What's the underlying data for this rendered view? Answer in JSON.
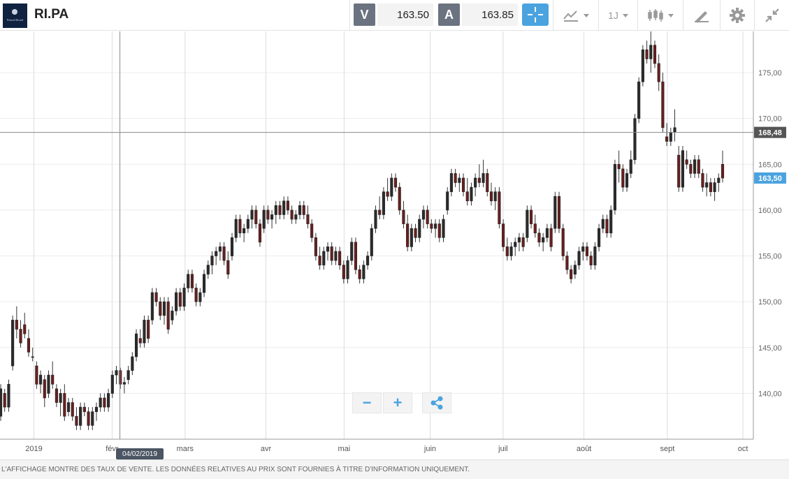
{
  "header": {
    "symbol": "RI.PA",
    "logo_text": "Pernod Ricard",
    "sell_label": "V",
    "sell_price": "163.50",
    "buy_label": "A",
    "buy_price": "163.85",
    "timeframe": "1J",
    "tools": [
      "crosshair-icon",
      "compare-icon",
      "timeframe-selector",
      "candlestick-type-icon",
      "drawing-pen-icon",
      "gear-icon",
      "collapse-icon"
    ]
  },
  "footer": {
    "disclaimer": "L'AFFICHAGE MONTRE DES TAUX DE VENTE. LES DONNÉES RELATIVES AU PRIX SONT FOURNIES À TITRE D'INFORMATION UNIQUEMENT."
  },
  "controls": {
    "zoom_out": "−",
    "zoom_in": "+",
    "share_icon": "share-icon"
  },
  "tooltip": {
    "date": "04/02/2019"
  },
  "colors": {
    "up": "#2b2b2b",
    "down": "#6b1e1e",
    "accent": "#4aa3df",
    "crosshair_label": "#555555"
  },
  "chart_data": {
    "type": "candlestick",
    "ylim": [
      135.0,
      179.5
    ],
    "y_ticks": [
      "140,00",
      "145,00",
      "150,00",
      "155,00",
      "160,00",
      "165,00",
      "170,00",
      "175,00"
    ],
    "x_labels": [
      {
        "label": "2019",
        "date": "2019-01-02"
      },
      {
        "label": "févr",
        "date": "2019-02-01"
      },
      {
        "label": "mars",
        "date": "2019-03-01"
      },
      {
        "label": "avr",
        "date": "2019-04-01"
      },
      {
        "label": "mai",
        "date": "2019-05-01"
      },
      {
        "label": "juin",
        "date": "2019-06-03"
      },
      {
        "label": "juil",
        "date": "2019-07-01"
      },
      {
        "label": "août",
        "date": "2019-08-01"
      },
      {
        "label": "sept",
        "date": "2019-09-02"
      },
      {
        "label": "oct",
        "date": "2019-10-01"
      }
    ],
    "crosshair_price": "168,48",
    "crosshair_value": 168.48,
    "last_price_label": "163,50",
    "last_price_value": 163.5,
    "candles": [
      [
        137.5,
        141.0,
        137.0,
        140.5
      ],
      [
        140.0,
        140.5,
        138.0,
        138.5
      ],
      [
        138.5,
        141.5,
        138.0,
        141.0
      ],
      [
        143.0,
        148.5,
        142.5,
        148.0
      ],
      [
        148.0,
        149.5,
        146.0,
        147.0
      ],
      [
        147.0,
        148.0,
        145.0,
        145.5
      ],
      [
        147.5,
        148.8,
        146.0,
        146.5
      ],
      [
        146.0,
        147.0,
        144.0,
        144.5
      ],
      [
        144.0,
        145.0,
        143.5,
        144.0
      ],
      [
        143.0,
        143.5,
        140.5,
        141.0
      ],
      [
        141.0,
        142.5,
        140.0,
        142.0
      ],
      [
        141.5,
        142.0,
        138.5,
        139.5
      ],
      [
        140.0,
        142.5,
        139.5,
        142.0
      ],
      [
        142.0,
        143.5,
        140.5,
        141.0
      ],
      [
        140.5,
        141.0,
        138.5,
        139.0
      ],
      [
        139.0,
        140.5,
        137.5,
        140.0
      ],
      [
        140.0,
        141.0,
        137.0,
        137.5
      ],
      [
        138.0,
        139.5,
        137.5,
        139.0
      ],
      [
        139.0,
        139.5,
        137.0,
        137.5
      ],
      [
        137.5,
        138.5,
        136.0,
        136.5
      ],
      [
        136.5,
        139.0,
        136.0,
        138.5
      ],
      [
        138.5,
        139.0,
        137.5,
        138.0
      ],
      [
        138.0,
        138.5,
        136.0,
        136.5
      ],
      [
        136.5,
        138.5,
        136.0,
        138.0
      ],
      [
        138.0,
        139.0,
        137.0,
        138.5
      ],
      [
        138.5,
        140.0,
        138.0,
        139.5
      ],
      [
        139.5,
        140.0,
        138.0,
        138.5
      ],
      [
        138.5,
        140.5,
        138.0,
        140.0
      ],
      [
        140.0,
        142.5,
        139.5,
        142.0
      ],
      [
        142.0,
        143.0,
        141.0,
        142.5
      ],
      [
        142.5,
        142.8,
        140.5,
        141.0
      ],
      [
        141.0,
        141.8,
        140.0,
        141.2
      ],
      [
        141.5,
        143.0,
        141.0,
        142.5
      ],
      [
        142.5,
        144.5,
        142.0,
        144.0
      ],
      [
        144.0,
        147.0,
        143.5,
        146.5
      ],
      [
        146.0,
        147.0,
        145.0,
        145.5
      ],
      [
        145.5,
        148.5,
        145.0,
        148.0
      ],
      [
        148.0,
        148.5,
        145.5,
        146.0
      ],
      [
        148.0,
        151.5,
        147.5,
        151.0
      ],
      [
        151.0,
        151.5,
        149.5,
        150.0
      ],
      [
        150.0,
        150.5,
        148.0,
        148.5
      ],
      [
        148.5,
        150.5,
        147.5,
        150.0
      ],
      [
        150.0,
        150.5,
        146.5,
        147.0
      ],
      [
        148.0,
        149.5,
        147.5,
        149.0
      ],
      [
        149.0,
        151.5,
        148.5,
        151.0
      ],
      [
        151.0,
        151.5,
        149.0,
        149.5
      ],
      [
        149.5,
        152.0,
        149.0,
        151.5
      ],
      [
        151.5,
        153.5,
        151.0,
        153.0
      ],
      [
        153.0,
        153.5,
        151.0,
        151.5
      ],
      [
        151.5,
        152.0,
        149.5,
        150.0
      ],
      [
        150.0,
        151.5,
        149.5,
        151.0
      ],
      [
        151.0,
        153.5,
        150.5,
        153.0
      ],
      [
        153.0,
        154.5,
        152.5,
        154.0
      ],
      [
        154.0,
        155.5,
        153.0,
        155.0
      ],
      [
        155.0,
        156.0,
        154.0,
        155.5
      ],
      [
        155.5,
        156.5,
        154.5,
        156.0
      ],
      [
        156.0,
        156.5,
        154.0,
        154.5
      ],
      [
        154.5,
        155.5,
        152.5,
        153.0
      ],
      [
        155.0,
        157.5,
        154.5,
        157.0
      ],
      [
        157.0,
        159.5,
        156.5,
        159.0
      ],
      [
        159.0,
        159.5,
        157.0,
        157.5
      ],
      [
        157.5,
        158.5,
        156.5,
        158.0
      ],
      [
        158.0,
        159.5,
        157.5,
        159.0
      ],
      [
        159.0,
        160.5,
        158.0,
        160.0
      ],
      [
        160.0,
        160.5,
        158.0,
        158.5
      ],
      [
        158.5,
        159.0,
        156.0,
        156.5
      ],
      [
        158.0,
        160.5,
        157.5,
        160.0
      ],
      [
        160.0,
        160.5,
        158.5,
        159.0
      ],
      [
        159.0,
        160.0,
        158.0,
        159.5
      ],
      [
        159.5,
        161.0,
        158.5,
        160.5
      ],
      [
        160.5,
        161.0,
        159.0,
        159.5
      ],
      [
        159.5,
        161.5,
        159.0,
        161.0
      ],
      [
        161.0,
        161.5,
        159.5,
        160.0
      ],
      [
        160.0,
        160.5,
        158.5,
        159.0
      ],
      [
        159.0,
        160.0,
        158.5,
        159.5
      ],
      [
        159.5,
        161.0,
        159.0,
        160.5
      ],
      [
        160.5,
        161.0,
        159.0,
        159.5
      ],
      [
        159.5,
        160.5,
        158.0,
        158.5
      ],
      [
        158.5,
        159.0,
        156.5,
        157.0
      ],
      [
        157.0,
        157.5,
        154.5,
        155.0
      ],
      [
        155.0,
        156.0,
        153.5,
        154.0
      ],
      [
        154.0,
        156.0,
        153.5,
        155.5
      ],
      [
        155.5,
        156.5,
        154.5,
        156.0
      ],
      [
        156.0,
        156.5,
        154.0,
        154.5
      ],
      [
        154.5,
        156.0,
        154.0,
        155.5
      ],
      [
        155.5,
        156.0,
        153.5,
        154.0
      ],
      [
        154.0,
        154.5,
        152.0,
        152.5
      ],
      [
        152.5,
        155.0,
        152.0,
        154.5
      ],
      [
        154.5,
        157.0,
        154.0,
        156.5
      ],
      [
        156.5,
        157.0,
        153.0,
        153.5
      ],
      [
        153.5,
        154.0,
        152.0,
        152.5
      ],
      [
        152.5,
        154.5,
        152.0,
        154.0
      ],
      [
        154.0,
        155.5,
        153.5,
        155.0
      ],
      [
        155.0,
        158.5,
        154.5,
        158.0
      ],
      [
        158.0,
        160.5,
        157.5,
        160.0
      ],
      [
        160.0,
        161.5,
        159.0,
        159.5
      ],
      [
        159.5,
        162.5,
        159.0,
        162.0
      ],
      [
        162.0,
        163.5,
        161.0,
        161.5
      ],
      [
        161.5,
        164.0,
        161.0,
        163.5
      ],
      [
        163.5,
        164.0,
        162.0,
        162.5
      ],
      [
        162.5,
        163.0,
        159.5,
        160.0
      ],
      [
        160.0,
        161.0,
        158.0,
        158.5
      ],
      [
        158.5,
        159.5,
        155.5,
        156.0
      ],
      [
        156.0,
        158.5,
        155.5,
        158.0
      ],
      [
        158.0,
        158.5,
        156.5,
        157.0
      ],
      [
        157.0,
        159.5,
        156.5,
        159.0
      ],
      [
        159.0,
        160.5,
        158.0,
        160.0
      ],
      [
        160.0,
        160.5,
        158.0,
        158.5
      ],
      [
        158.5,
        159.0,
        157.5,
        158.0
      ],
      [
        158.0,
        159.0,
        157.0,
        158.5
      ],
      [
        158.5,
        159.0,
        156.5,
        157.0
      ],
      [
        157.0,
        159.5,
        156.5,
        159.0
      ],
      [
        160.0,
        162.5,
        159.5,
        162.0
      ],
      [
        162.0,
        164.5,
        161.5,
        164.0
      ],
      [
        164.0,
        164.5,
        162.5,
        163.0
      ],
      [
        163.0,
        164.0,
        162.0,
        163.5
      ],
      [
        163.5,
        164.0,
        161.5,
        162.0
      ],
      [
        162.0,
        163.5,
        160.5,
        161.0
      ],
      [
        161.0,
        163.0,
        160.5,
        162.5
      ],
      [
        162.5,
        164.0,
        161.5,
        163.5
      ],
      [
        163.5,
        165.0,
        162.5,
        163.0
      ],
      [
        163.0,
        165.5,
        162.5,
        164.0
      ],
      [
        164.0,
        164.5,
        161.5,
        162.0
      ],
      [
        162.0,
        163.0,
        160.5,
        161.0
      ],
      [
        161.0,
        162.5,
        160.0,
        162.0
      ],
      [
        162.0,
        162.5,
        158.0,
        158.5
      ],
      [
        158.5,
        159.0,
        155.5,
        156.0
      ],
      [
        156.0,
        157.0,
        154.5,
        155.0
      ],
      [
        155.0,
        156.5,
        154.5,
        156.0
      ],
      [
        156.0,
        157.0,
        155.0,
        156.5
      ],
      [
        156.5,
        157.5,
        155.5,
        157.0
      ],
      [
        157.0,
        157.5,
        155.5,
        156.0
      ],
      [
        157.0,
        160.5,
        156.5,
        160.0
      ],
      [
        160.0,
        160.5,
        158.0,
        158.5
      ],
      [
        158.5,
        159.5,
        157.0,
        157.5
      ],
      [
        157.5,
        158.0,
        156.0,
        156.5
      ],
      [
        156.5,
        157.5,
        155.5,
        157.0
      ],
      [
        157.0,
        158.5,
        156.5,
        158.0
      ],
      [
        158.0,
        158.5,
        155.5,
        156.0
      ],
      [
        158.0,
        162.0,
        157.5,
        161.5
      ],
      [
        161.5,
        162.0,
        157.5,
        158.0
      ],
      [
        158.0,
        158.5,
        154.5,
        155.0
      ],
      [
        155.0,
        155.5,
        153.0,
        153.5
      ],
      [
        153.5,
        154.0,
        152.0,
        152.5
      ],
      [
        153.0,
        154.5,
        152.5,
        154.0
      ],
      [
        154.0,
        156.0,
        153.5,
        155.5
      ],
      [
        155.5,
        156.5,
        154.5,
        156.0
      ],
      [
        156.0,
        156.5,
        154.5,
        155.0
      ],
      [
        155.0,
        155.5,
        153.5,
        154.0
      ],
      [
        154.0,
        156.5,
        153.5,
        156.0
      ],
      [
        156.0,
        158.5,
        155.5,
        158.0
      ],
      [
        158.0,
        159.5,
        157.5,
        159.0
      ],
      [
        159.0,
        159.5,
        157.0,
        157.5
      ],
      [
        157.5,
        160.5,
        157.0,
        160.0
      ],
      [
        160.0,
        165.5,
        159.5,
        165.0
      ],
      [
        165.0,
        166.5,
        163.0,
        164.5
      ],
      [
        164.5,
        165.0,
        162.0,
        162.5
      ],
      [
        162.5,
        164.5,
        162.0,
        164.0
      ],
      [
        164.0,
        166.5,
        163.5,
        165.5
      ],
      [
        165.5,
        170.5,
        165.0,
        170.0
      ],
      [
        170.0,
        174.5,
        169.5,
        174.0
      ],
      [
        174.0,
        178.0,
        173.5,
        177.5
      ],
      [
        177.5,
        178.5,
        176.0,
        176.5
      ],
      [
        176.5,
        179.5,
        175.0,
        178.0
      ],
      [
        178.0,
        178.5,
        175.5,
        176.0
      ],
      [
        176.0,
        177.0,
        173.0,
        174.0
      ],
      [
        174.0,
        175.0,
        168.5,
        169.0
      ],
      [
        168.0,
        169.5,
        167.0,
        167.5
      ],
      [
        167.5,
        169.0,
        167.0,
        168.5
      ],
      [
        168.5,
        171.0,
        167.5,
        169.0
      ],
      [
        166.0,
        167.0,
        162.0,
        162.5
      ],
      [
        162.5,
        167.0,
        162.0,
        166.5
      ],
      [
        165.5,
        166.5,
        164.5,
        165.0
      ],
      [
        165.0,
        165.5,
        163.5,
        164.0
      ],
      [
        164.0,
        166.0,
        163.5,
        165.5
      ],
      [
        165.5,
        166.0,
        163.5,
        164.0
      ],
      [
        164.0,
        164.5,
        162.0,
        162.5
      ],
      [
        162.5,
        164.0,
        161.5,
        163.0
      ],
      [
        163.0,
        163.5,
        161.5,
        162.0
      ],
      [
        162.0,
        163.5,
        161.0,
        163.0
      ],
      [
        163.0,
        164.0,
        162.0,
        163.5
      ],
      [
        165.0,
        166.5,
        163.0,
        163.5
      ]
    ]
  }
}
